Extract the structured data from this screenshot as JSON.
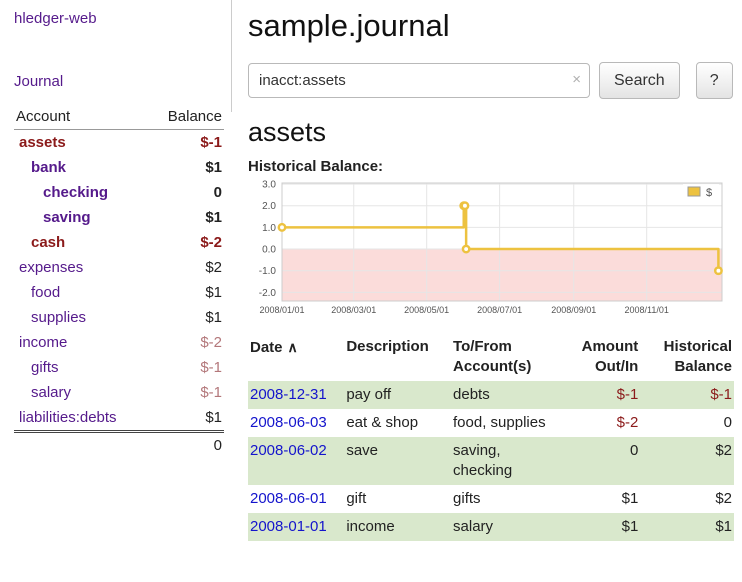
{
  "app": {
    "brand": "hledger-web",
    "nav_journal": "Journal",
    "title": "sample.journal"
  },
  "search": {
    "value": "inacct:assets",
    "clear_icon": "×",
    "button": "Search",
    "help_button": "?"
  },
  "sidebar": {
    "header": {
      "account": "Account",
      "balance": "Balance"
    },
    "accounts": [
      {
        "name": "assets",
        "balance": "$-1",
        "indent": 0
      },
      {
        "name": "bank",
        "balance": "$1",
        "indent": 1
      },
      {
        "name": "checking",
        "balance": "0",
        "indent": 2
      },
      {
        "name": "saving",
        "balance": "$1",
        "indent": 2
      },
      {
        "name": "cash",
        "balance": "$-2",
        "indent": 1
      },
      {
        "name": "expenses",
        "balance": "$2",
        "indent": 0
      },
      {
        "name": "food",
        "balance": "$1",
        "indent": 1
      },
      {
        "name": "supplies",
        "balance": "$1",
        "indent": 1
      },
      {
        "name": "income",
        "balance": "$-2",
        "indent": 0
      },
      {
        "name": "gifts",
        "balance": "$-1",
        "indent": 1
      },
      {
        "name": "salary",
        "balance": "$-1",
        "indent": 1
      },
      {
        "name": "liabilities:debts",
        "balance": "$1",
        "indent": 0
      }
    ],
    "total": "0"
  },
  "main": {
    "account_heading": "assets",
    "chart_label": "Historical Balance:",
    "register": {
      "headers": {
        "date": "Date",
        "sort_icon": "∧",
        "description": "Description",
        "tofrom": "To/From Account(s)",
        "amount": "Amount Out/In",
        "balance": "Historical Balance"
      },
      "rows": [
        {
          "date": "2008-12-31",
          "description": "pay off",
          "accounts": "debts",
          "amount": "$-1",
          "balance": "$-1"
        },
        {
          "date": "2008-06-03",
          "description": "eat & shop",
          "accounts": "food, supplies",
          "amount": "$-2",
          "balance": "0"
        },
        {
          "date": "2008-06-02",
          "description": "save",
          "accounts": "saving, checking",
          "amount": "0",
          "balance": "$2"
        },
        {
          "date": "2008-06-01",
          "description": "gift",
          "accounts": "gifts",
          "amount": "$1",
          "balance": "$2"
        },
        {
          "date": "2008-01-01",
          "description": "income",
          "accounts": "salary",
          "amount": "$1",
          "balance": "$1"
        }
      ]
    }
  },
  "chart_data": {
    "type": "line",
    "step": true,
    "title": "Historical Balance",
    "x_unit": "days since 2008-01-01",
    "xlim": [
      0,
      368
    ],
    "ylim": [
      -2.4,
      3.05
    ],
    "grid": true,
    "legend_position": "ne",
    "negative_region_color": "#fbdcda",
    "legend": {
      "label": "$",
      "swatch_color": "#EDC240"
    },
    "yticks": [
      {
        "v": 3,
        "label": "3.0"
      },
      {
        "v": 2,
        "label": "2.0"
      },
      {
        "v": 1,
        "label": "1.0"
      },
      {
        "v": 0,
        "label": "0.0"
      },
      {
        "v": -1,
        "label": "-1.0"
      },
      {
        "v": -2,
        "label": "-2.0"
      }
    ],
    "xticks": [
      {
        "v": 0,
        "label": "2008/01/01"
      },
      {
        "v": 60,
        "label": "2008/03/01"
      },
      {
        "v": 121,
        "label": "2008/05/01"
      },
      {
        "v": 182,
        "label": "2008/07/01"
      },
      {
        "v": 244,
        "label": "2008/09/01"
      },
      {
        "v": 305,
        "label": "2008/11/01"
      }
    ],
    "series": [
      {
        "name": "$",
        "color": "#EDC240",
        "points": [
          [
            0,
            1
          ],
          [
            152,
            1
          ],
          [
            152,
            2
          ],
          [
            154,
            2
          ],
          [
            154,
            0
          ],
          [
            365,
            0
          ],
          [
            365,
            -1
          ]
        ],
        "markers": [
          [
            0,
            1
          ],
          [
            152,
            2
          ],
          [
            153,
            2
          ],
          [
            154,
            0
          ],
          [
            365,
            -1
          ]
        ]
      }
    ]
  },
  "colors": {
    "link_purple": "#551A8B",
    "negative_red": "#8b1a1a",
    "negative_muted": "#b3777a",
    "date_link_blue": "#1414cc",
    "row_green": "#d9e8cc",
    "series_yellow": "#EDC240",
    "negative_region": "#fbdcda"
  }
}
